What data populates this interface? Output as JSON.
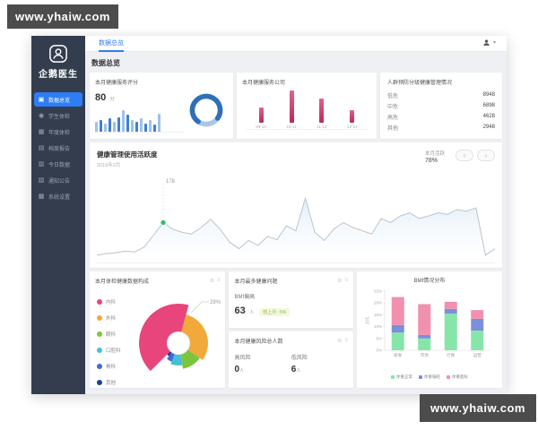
{
  "watermark": {
    "text": "www.yhaiw.com"
  },
  "sidebar": {
    "logo_text": "企鹅医生",
    "items": [
      {
        "label": "数据总览",
        "icon": "▣",
        "active": true
      },
      {
        "label": "学生体检",
        "icon": "◉",
        "active": false
      },
      {
        "label": "年度体检",
        "icon": "▦",
        "active": false
      },
      {
        "label": "档案报告",
        "icon": "▤",
        "active": false
      },
      {
        "label": "今日数据",
        "icon": "▥",
        "active": false
      },
      {
        "label": "通知公告",
        "icon": "▧",
        "active": false
      },
      {
        "label": "系统设置",
        "icon": "▩",
        "active": false
      }
    ]
  },
  "topbar": {
    "tab": "数据总览"
  },
  "page": {
    "title": "数据总览"
  },
  "cards": {
    "score": {
      "title": "本月健康服务评分",
      "value": "80",
      "unit": "分"
    },
    "booking": {
      "title": "本月健康服务公司"
    },
    "coverage": {
      "title": "人群预防分级健康管理情况",
      "rows": [
        {
          "label": "低危",
          "value": "8948"
        },
        {
          "label": "中危",
          "value": "6898"
        },
        {
          "label": "高危",
          "value": "4628"
        },
        {
          "label": "其他",
          "value": "2948"
        }
      ]
    },
    "activity": {
      "title": "健康管理使用活跃度",
      "subtitle": "2019年2月",
      "stat_label": "本月活跃",
      "stat_value": "78%",
      "prev_btn": "‹",
      "next_btn": "›"
    },
    "composition": {
      "title": "本月体检健康数据构成",
      "callout": "29%"
    },
    "top_issue": {
      "title": "本月最多健康问题",
      "label": "BMI偏高",
      "value": "63",
      "unit": "人",
      "tag": "较上月 ↑5%"
    },
    "risk": {
      "title": "本月健康风险总人数",
      "items": [
        {
          "label": "高风险",
          "value": "0",
          "unit": "人"
        },
        {
          "label": "低风险",
          "value": "6",
          "unit": "人"
        }
      ]
    },
    "bmi": {
      "title": "BMI情况分布",
      "ylabel": "占比"
    }
  },
  "chart_data": [
    {
      "id": "monthly-score-bars",
      "type": "bar",
      "title": "本月健康服务评分",
      "values": [
        40,
        50,
        35,
        55,
        40,
        60,
        90,
        70,
        48,
        42,
        55,
        35,
        48,
        28,
        75
      ],
      "ylim": [
        0,
        100
      ],
      "color_dark": "#3f7fd4",
      "color_light": "#9fc1e6"
    },
    {
      "id": "score-ring",
      "type": "pie",
      "values": [
        {
          "name": "完成",
          "value": 75,
          "color": "#2f6fb8"
        },
        {
          "name": "未完成",
          "value": 25,
          "color": "#a9c8e8"
        }
      ]
    },
    {
      "id": "booking-bars",
      "type": "bar",
      "title": "本月健康服务公司",
      "categories": [
        "09-10",
        "10-11",
        "11-12",
        "12-13"
      ],
      "values": [
        35,
        72,
        55,
        28
      ],
      "ylim": [
        0,
        100
      ],
      "color": "#c9396b"
    },
    {
      "id": "activity-line",
      "type": "area",
      "title": "健康管理使用活跃度",
      "values": [
        10,
        12,
        13,
        15,
        14,
        20,
        35,
        50,
        42,
        38,
        36,
        44,
        54,
        42,
        26,
        18,
        28,
        22,
        33,
        29,
        46,
        40,
        80,
        38,
        28,
        42,
        50,
        44,
        40,
        36,
        55,
        50,
        58,
        62,
        55,
        58,
        62,
        60,
        66,
        64,
        68,
        10,
        18
      ],
      "ylim": [
        0,
        100
      ],
      "marker_index": 7,
      "marker_color": "#2fbf71",
      "tooltip": "178",
      "line_color": "#b9c4cc",
      "fill_color": "#dcebf8",
      "grid": false
    },
    {
      "id": "composition-rose",
      "type": "pie",
      "title": "本月体检健康数据构成",
      "callout": "29%",
      "slices": [
        {
          "label": "内科",
          "color": "#e8457d",
          "value": 38,
          "start": 135,
          "end": 285,
          "r": 44
        },
        {
          "label": "外科",
          "color": "#f2a93b",
          "value": 29,
          "start": 285,
          "end": 395,
          "r": 33
        },
        {
          "label": "眼科",
          "color": "#7cc63f",
          "value": 12,
          "start": 35,
          "end": 80,
          "r": 29
        },
        {
          "label": "口腔科",
          "color": "#45c0d8",
          "value": 9,
          "start": 80,
          "end": 110,
          "r": 25
        },
        {
          "label": "骨科",
          "color": "#4467d8",
          "value": 7,
          "start": 110,
          "end": 126,
          "r": 22
        },
        {
          "label": "其他",
          "color": "#1d3f8f",
          "value": 5,
          "start": 126,
          "end": 135,
          "r": 18
        }
      ]
    },
    {
      "id": "bmi-stacked",
      "type": "bar",
      "stacked": true,
      "title": "BMI情况分布",
      "categories": [
        "研发",
        "市场",
        "行政",
        "运营"
      ],
      "ylabel": "占比",
      "ylim": [
        0,
        25
      ],
      "yticks": [
        "0%",
        "5%",
        "10%",
        "15%",
        "20%",
        "25%"
      ],
      "legend_position": "bottom",
      "series": [
        {
          "name": "体重正常",
          "color": "#86e6a9",
          "values": [
            7.5,
            5.0,
            15.5,
            8.3
          ]
        },
        {
          "name": "体重偏轻",
          "color": "#7b8fdb",
          "values": [
            3.2,
            1.5,
            2.0,
            5.0
          ]
        },
        {
          "name": "体重超标",
          "color": "#f191ad",
          "values": [
            11.8,
            13.0,
            3.0,
            3.7
          ]
        }
      ]
    }
  ]
}
